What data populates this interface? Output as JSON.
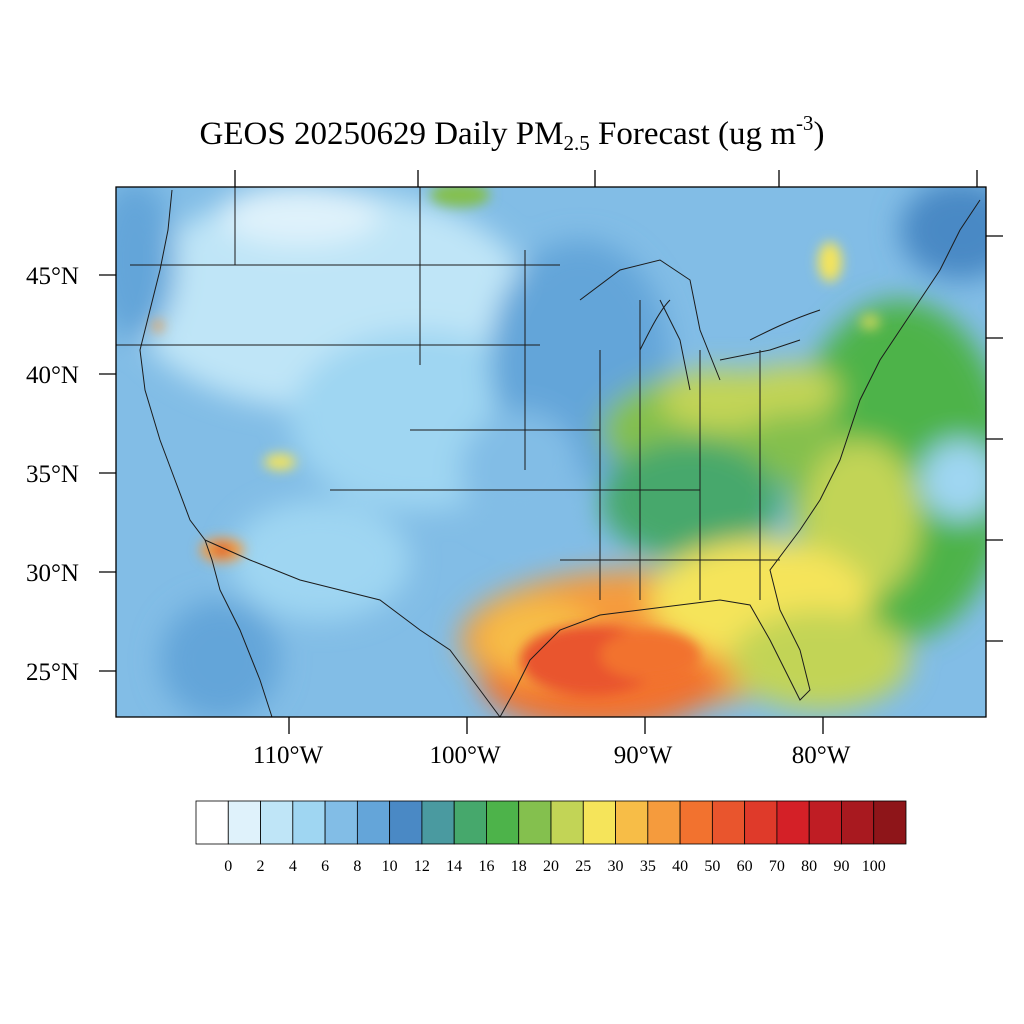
{
  "title": {
    "prefix": "GEOS 20250629 Daily PM",
    "subscript": "2.5",
    "middle": " Forecast (ug m",
    "superscript": "-3",
    "suffix": ")"
  },
  "axes": {
    "lat_labels": [
      "45°N",
      "40°N",
      "35°N",
      "30°N",
      "25°N"
    ],
    "lon_labels": [
      "110°W",
      "100°W",
      "90°W",
      "80°W"
    ]
  },
  "colorbar": {
    "labels": [
      "0",
      "2",
      "4",
      "6",
      "8",
      "10",
      "12",
      "14",
      "16",
      "18",
      "20",
      "25",
      "30",
      "35",
      "40",
      "50",
      "60",
      "70",
      "80",
      "90",
      "100"
    ],
    "colors": [
      "#ffffff",
      "#dff2fb",
      "#bfe5f7",
      "#9fd6f2",
      "#82bde6",
      "#64a5d9",
      "#4a89c5",
      "#4a9aa0",
      "#46a86c",
      "#4db34a",
      "#84c04e",
      "#c2d456",
      "#f5e45a",
      "#f7bd47",
      "#f59b3d",
      "#f2722f",
      "#e9552d",
      "#df3a2a",
      "#d42027",
      "#bf1d24",
      "#a8191f",
      "#8e1519"
    ]
  }
}
